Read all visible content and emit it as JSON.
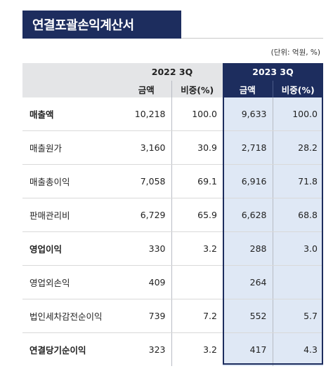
{
  "title": "연결포괄손익계산서",
  "unit": "(단위: 억원, %)",
  "header": {
    "period_a": "2022 3Q",
    "period_b": "2023 3Q",
    "col_amount": "금액",
    "col_ratio": "비중(%)"
  },
  "rows": [
    {
      "label": "매출액",
      "a_amount": "10,218",
      "a_ratio": "100.0",
      "b_amount": "9,633",
      "b_ratio": "100.0",
      "bold": true
    },
    {
      "label": "매출원가",
      "a_amount": "3,160",
      "a_ratio": "30.9",
      "b_amount": "2,718",
      "b_ratio": "28.2",
      "bold": false
    },
    {
      "label": "매출총이익",
      "a_amount": "7,058",
      "a_ratio": "69.1",
      "b_amount": "6,916",
      "b_ratio": "71.8",
      "bold": false
    },
    {
      "label": "판매관리비",
      "a_amount": "6,729",
      "a_ratio": "65.9",
      "b_amount": "6,628",
      "b_ratio": "68.8",
      "bold": false
    },
    {
      "label": "영업이익",
      "a_amount": "330",
      "a_ratio": "3.2",
      "b_amount": "288",
      "b_ratio": "3.0",
      "bold": true
    },
    {
      "label": "영업외손익",
      "a_amount": "409",
      "a_ratio": "",
      "b_amount": "264",
      "b_ratio": "",
      "bold": false
    },
    {
      "label": "법인세차감전순이익",
      "a_amount": "739",
      "a_ratio": "7.2",
      "b_amount": "552",
      "b_ratio": "5.7",
      "bold": false
    },
    {
      "label": "연결당기순이익",
      "a_amount": "323",
      "a_ratio": "3.2",
      "b_amount": "417",
      "b_ratio": "4.3",
      "bold": true
    }
  ],
  "colors": {
    "navy": "#1d2d5e",
    "header_gray": "#e4e5e7",
    "highlight_blue": "#dfe8f5"
  }
}
